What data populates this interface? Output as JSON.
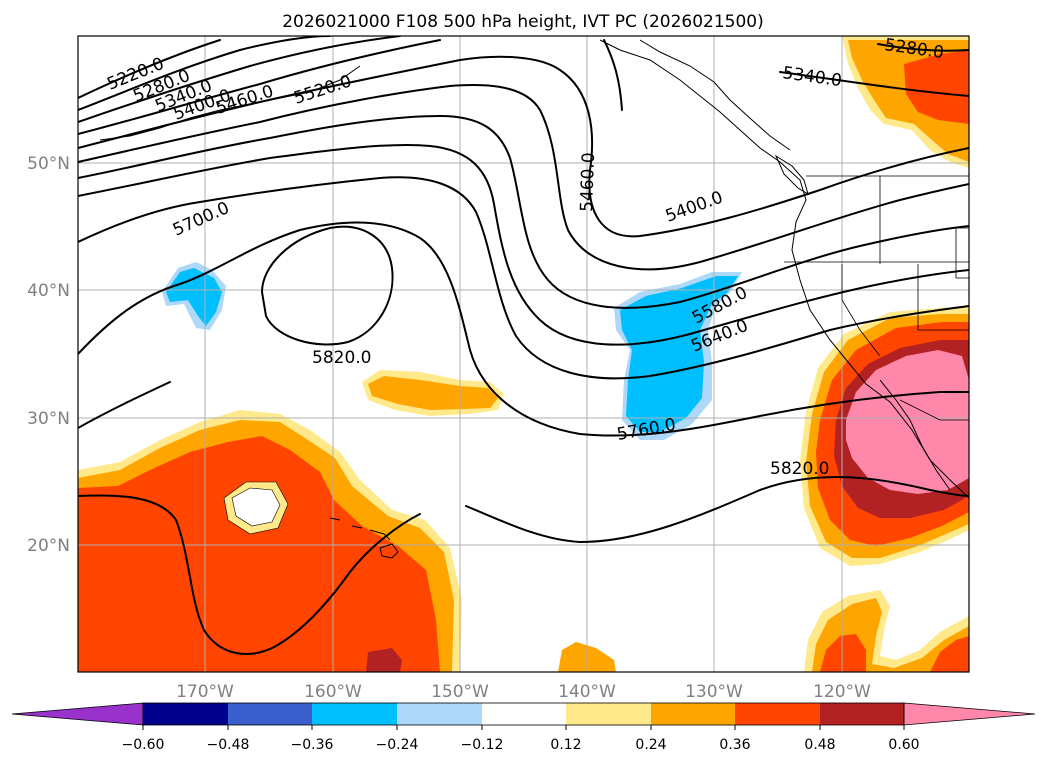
{
  "title": "2026021000 F108 500 hPa height, IVT PC (2026021500)",
  "latitude_labels": [
    "50°N",
    "40°N",
    "30°N",
    "20°N"
  ],
  "longitude_labels": [
    "170°W",
    "160°W",
    "150°W",
    "140°W",
    "130°W",
    "120°W"
  ],
  "colorbar": {
    "ticks": [
      "−0.60",
      "−0.48",
      "−0.36",
      "−0.24",
      "−0.12",
      "0.12",
      "0.24",
      "0.36",
      "0.48",
      "0.60"
    ],
    "colors": {
      "below_min": "#9932cc",
      "neg_060_048": "#00008b",
      "neg_048_036": "#3a5fcd",
      "neg_036_024": "#00bfff",
      "neg_024_012": "#add8f8",
      "neutral": "#ffffff",
      "pos_012_024": "#ffe98a",
      "pos_024_036": "#ffa500",
      "pos_036_048": "#ff4500",
      "pos_048_060": "#b22222",
      "above_max": "#ff88aa"
    }
  },
  "contour_labels": {
    "c5220": "5220.0",
    "c5280_w": "5280.0",
    "c5340_w": "5340.0",
    "c5400_w": "5400.0",
    "c5460_w": "5460.0",
    "c5520_w": "5520.0",
    "c5700": "5700.0",
    "c5820_center": "5820.0",
    "c5460_mid": "5460.0",
    "c5400_e": "5400.0",
    "c5340_e": "5340.0",
    "c5280_e": "5280.0",
    "c5580": "5580.0",
    "c5640": "5640.0",
    "c5760": "5760.0",
    "c5820_e": "5820.0"
  }
}
